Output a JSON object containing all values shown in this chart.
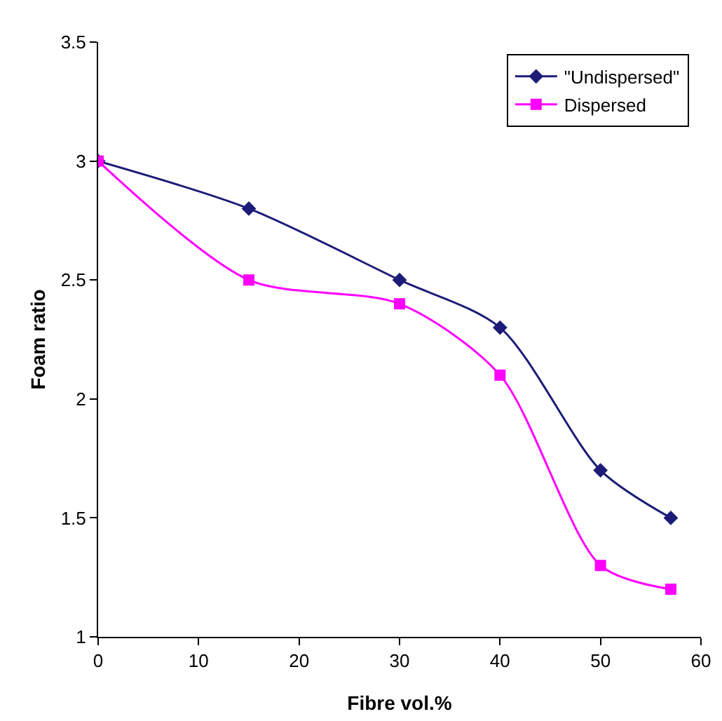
{
  "chart_data": {
    "type": "line",
    "xlabel": "Fibre vol.%",
    "ylabel": "Foam ratio",
    "xlim": [
      0,
      60
    ],
    "xticks": [
      0,
      10,
      20,
      30,
      40,
      50,
      60
    ],
    "ylim": [
      1,
      3.5
    ],
    "yticks": [
      1,
      1.5,
      2,
      2.5,
      3,
      3.5
    ],
    "grid": false,
    "legend": "top right",
    "line_style": "solid",
    "series": [
      {
        "name": "\"Undispersed\"",
        "color": "#1c1c78",
        "marker": "diamond",
        "x": [
          0,
          15,
          30,
          40,
          50,
          57
        ],
        "values": [
          3,
          2.8,
          2.5,
          2.3,
          1.7,
          1.5
        ]
      },
      {
        "name": "Dispersed",
        "color": "#ff00ff",
        "marker": "square",
        "x": [
          0,
          15,
          30,
          40,
          50,
          57
        ],
        "values": [
          3,
          2.5,
          2.4,
          2.1,
          1.3,
          1.2
        ]
      }
    ]
  }
}
